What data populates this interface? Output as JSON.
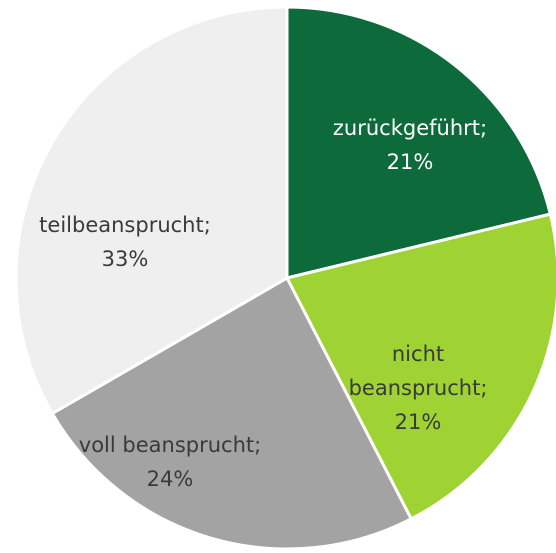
{
  "chart_data": {
    "type": "pie",
    "categories": [
      "zurückgeführt;",
      "nicht beansprucht;",
      "voll beansprucht;",
      "teilbeansprucht;"
    ],
    "values": [
      21,
      21,
      24,
      33
    ],
    "value_labels": [
      "21%",
      "21%",
      "24%",
      "33%"
    ],
    "colors": [
      "#0d6b3b",
      "#9fd233",
      "#a3a3a3",
      "#efefef"
    ]
  }
}
